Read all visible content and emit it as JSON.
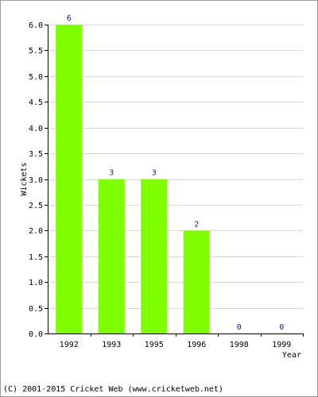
{
  "chart_data": {
    "type": "bar",
    "categories": [
      "1992",
      "1993",
      "1995",
      "1996",
      "1998",
      "1999"
    ],
    "values": [
      6,
      3,
      3,
      2,
      0,
      0
    ],
    "data_labels": [
      "6",
      "3",
      "3",
      "2",
      "0",
      "0"
    ],
    "xlabel": "Year",
    "ylabel": "Wickets",
    "ylim": [
      0,
      6
    ],
    "yticks": [
      "0.0",
      "0.5",
      "1.0",
      "1.5",
      "2.0",
      "2.5",
      "3.0",
      "3.5",
      "4.0",
      "4.5",
      "5.0",
      "5.5",
      "6.0"
    ],
    "grid": true,
    "colors": {
      "bar": "#80ff00",
      "grid": "#d8d8d8",
      "axis": "#000000",
      "data_label": "#1a1a8c"
    }
  },
  "footer": {
    "copyright": "(C) 2001-2015 Cricket Web (www.cricketweb.net)"
  }
}
